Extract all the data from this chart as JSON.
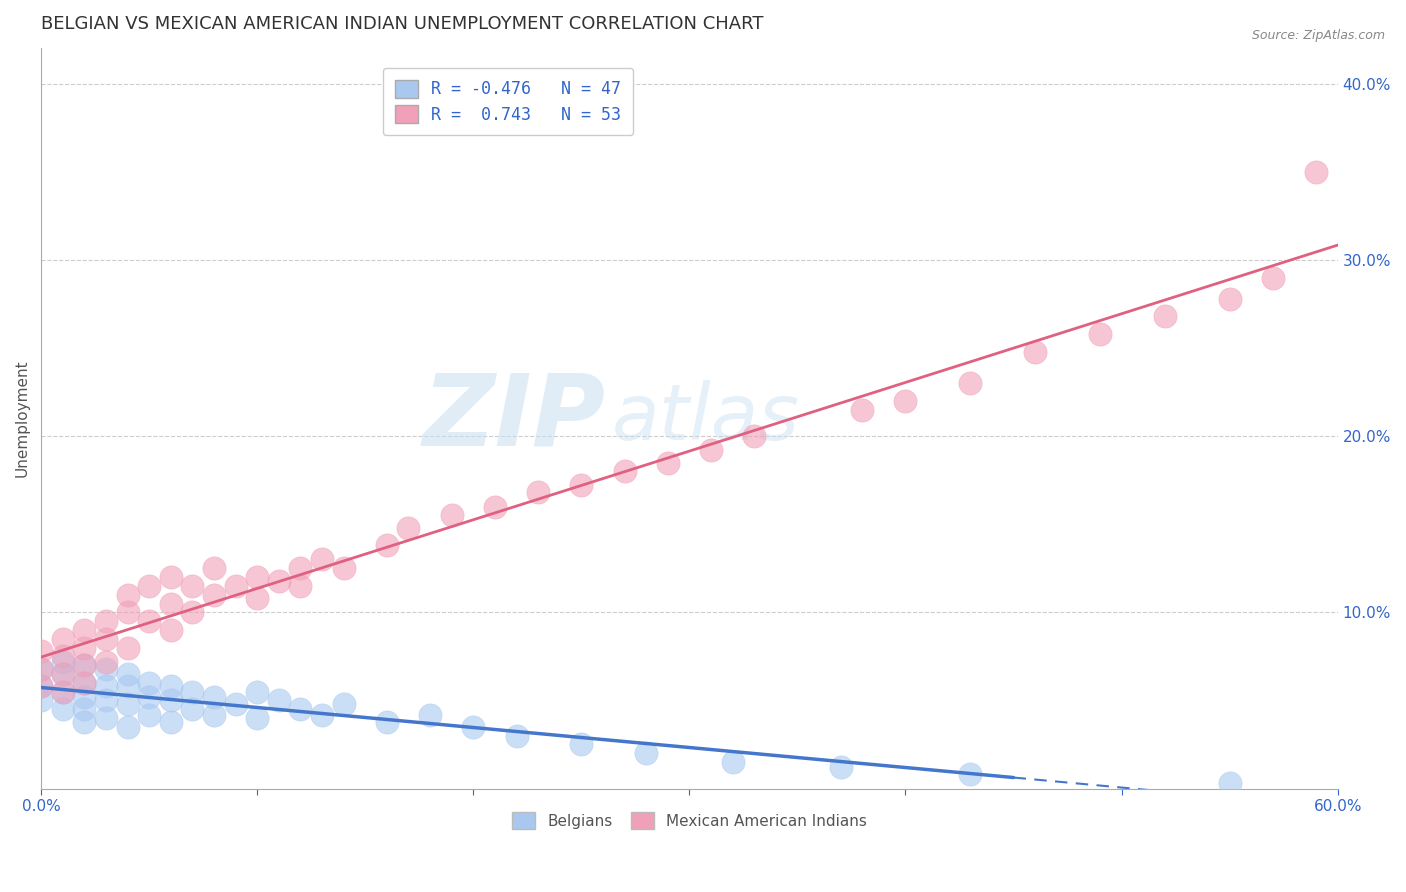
{
  "title": "BELGIAN VS MEXICAN AMERICAN INDIAN UNEMPLOYMENT CORRELATION CHART",
  "source": "Source: ZipAtlas.com",
  "xlabel": "",
  "ylabel": "Unemployment",
  "xlim": [
    0.0,
    0.6
  ],
  "ylim": [
    0.0,
    0.42
  ],
  "x_ticks": [
    0.0,
    0.1,
    0.2,
    0.3,
    0.4,
    0.5,
    0.6
  ],
  "x_tick_labels": [
    "0.0%",
    "",
    "",
    "",
    "",
    "",
    "60.0%"
  ],
  "y_ticks_right": [
    0.0,
    0.1,
    0.2,
    0.3,
    0.4
  ],
  "y_tick_labels_right": [
    "",
    "10.0%",
    "20.0%",
    "30.0%",
    "40.0%"
  ],
  "belgian_color": "#a8c8f0",
  "mexican_color": "#f0a0b8",
  "belgian_line_color": "#4477cc",
  "mexican_line_color": "#e06080",
  "watermark_zip": "ZIP",
  "watermark_atlas": "atlas",
  "belgians_label": "Belgians",
  "mexican_label": "Mexican American Indians",
  "title_color": "#333333",
  "title_fontsize": 13,
  "axis_label_color": "#555555",
  "tick_color": "#3366cc",
  "grid_color": "#cccccc",
  "background_color": "#ffffff",
  "belgian_points_x": [
    0.0,
    0.0,
    0.0,
    0.01,
    0.01,
    0.01,
    0.01,
    0.02,
    0.02,
    0.02,
    0.02,
    0.02,
    0.03,
    0.03,
    0.03,
    0.03,
    0.04,
    0.04,
    0.04,
    0.04,
    0.05,
    0.05,
    0.05,
    0.06,
    0.06,
    0.06,
    0.07,
    0.07,
    0.08,
    0.08,
    0.09,
    0.1,
    0.1,
    0.11,
    0.12,
    0.13,
    0.14,
    0.16,
    0.18,
    0.2,
    0.22,
    0.25,
    0.28,
    0.32,
    0.37,
    0.43,
    0.55
  ],
  "belgian_points_y": [
    0.068,
    0.058,
    0.05,
    0.072,
    0.065,
    0.055,
    0.045,
    0.07,
    0.06,
    0.052,
    0.045,
    0.038,
    0.068,
    0.058,
    0.05,
    0.04,
    0.065,
    0.058,
    0.048,
    0.035,
    0.06,
    0.052,
    0.042,
    0.058,
    0.05,
    0.038,
    0.055,
    0.045,
    0.052,
    0.042,
    0.048,
    0.055,
    0.04,
    0.05,
    0.045,
    0.042,
    0.048,
    0.038,
    0.042,
    0.035,
    0.03,
    0.025,
    0.02,
    0.015,
    0.012,
    0.008,
    0.003
  ],
  "mexican_points_x": [
    0.0,
    0.0,
    0.0,
    0.01,
    0.01,
    0.01,
    0.01,
    0.02,
    0.02,
    0.02,
    0.02,
    0.03,
    0.03,
    0.03,
    0.04,
    0.04,
    0.04,
    0.05,
    0.05,
    0.06,
    0.06,
    0.06,
    0.07,
    0.07,
    0.08,
    0.08,
    0.09,
    0.1,
    0.1,
    0.11,
    0.12,
    0.12,
    0.13,
    0.14,
    0.16,
    0.17,
    0.19,
    0.21,
    0.23,
    0.25,
    0.27,
    0.29,
    0.31,
    0.33,
    0.38,
    0.4,
    0.43,
    0.46,
    0.49,
    0.52,
    0.55,
    0.57,
    0.59
  ],
  "mexican_points_y": [
    0.068,
    0.078,
    0.058,
    0.075,
    0.085,
    0.065,
    0.055,
    0.08,
    0.07,
    0.09,
    0.06,
    0.085,
    0.095,
    0.072,
    0.1,
    0.11,
    0.08,
    0.095,
    0.115,
    0.09,
    0.105,
    0.12,
    0.1,
    0.115,
    0.11,
    0.125,
    0.115,
    0.108,
    0.12,
    0.118,
    0.125,
    0.115,
    0.13,
    0.125,
    0.138,
    0.148,
    0.155,
    0.16,
    0.168,
    0.172,
    0.18,
    0.185,
    0.192,
    0.2,
    0.215,
    0.22,
    0.23,
    0.248,
    0.258,
    0.268,
    0.278,
    0.29,
    0.35
  ]
}
